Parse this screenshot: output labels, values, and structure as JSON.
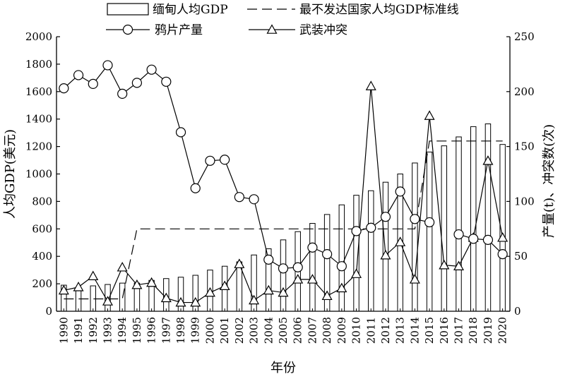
{
  "chart_data": {
    "type": "bar",
    "xlabel": "年份",
    "ylabel_left": "人均GDP(美元)",
    "ylabel_right": "产量(t)、冲突数(次)",
    "x": [
      "1990",
      "1991",
      "1992",
      "1993",
      "1994",
      "1995",
      "1996",
      "1997",
      "1998",
      "1999",
      "2000",
      "2001",
      "2002",
      "2003",
      "2004",
      "2005",
      "2006",
      "2007",
      "2008",
      "2009",
      "2010",
      "2011",
      "2012",
      "2013",
      "2014",
      "2015",
      "2016",
      "2017",
      "2018",
      "2019",
      "2020"
    ],
    "ylim_left": [
      0,
      2000
    ],
    "yticks_left": [
      0,
      200,
      400,
      600,
      800,
      1000,
      1200,
      1400,
      1600,
      1800,
      2000
    ],
    "ylim_right": [
      0,
      250
    ],
    "yticks_right": [
      0,
      50,
      100,
      150,
      200,
      250
    ],
    "legend_position": "top",
    "series": [
      {
        "name": "缅甸人均GDP",
        "kind": "bar",
        "axis": "left",
        "values": [
          190,
          170,
          185,
          195,
          205,
          205,
          225,
          238,
          248,
          262,
          300,
          328,
          360,
          410,
          455,
          520,
          580,
          640,
          705,
          775,
          845,
          878,
          940,
          1000,
          1080,
          1160,
          1205,
          1270,
          1345,
          1365,
          1215
        ]
      },
      {
        "name": "最不发达国家人均GDP标准线",
        "kind": "dashed-line",
        "axis": "left",
        "values": [
          90,
          90,
          90,
          90,
          90,
          600,
          600,
          600,
          600,
          600,
          600,
          600,
          600,
          600,
          600,
          600,
          600,
          600,
          600,
          600,
          600,
          600,
          600,
          600,
          600,
          1240,
          1240,
          1240,
          1240,
          1240,
          1240
        ]
      },
      {
        "name": "鸦片产量",
        "kind": "line-circle",
        "axis": "right",
        "values": [
          203,
          215,
          207,
          224,
          198,
          208,
          220,
          209,
          163,
          112,
          137,
          138,
          104,
          102,
          47,
          39,
          40,
          58,
          52,
          41,
          73,
          76,
          86,
          109,
          84,
          81,
          null,
          70,
          66,
          65,
          52
        ]
      },
      {
        "name": "武装冲突",
        "kind": "line-triangle",
        "axis": "right",
        "values": [
          19,
          22,
          32,
          9,
          40,
          24,
          26,
          12,
          8,
          8,
          17,
          23,
          43,
          10,
          19,
          17,
          29,
          29,
          14,
          21,
          34,
          205,
          51,
          63,
          29,
          178,
          42,
          41,
          67,
          137,
          67
        ]
      }
    ]
  }
}
